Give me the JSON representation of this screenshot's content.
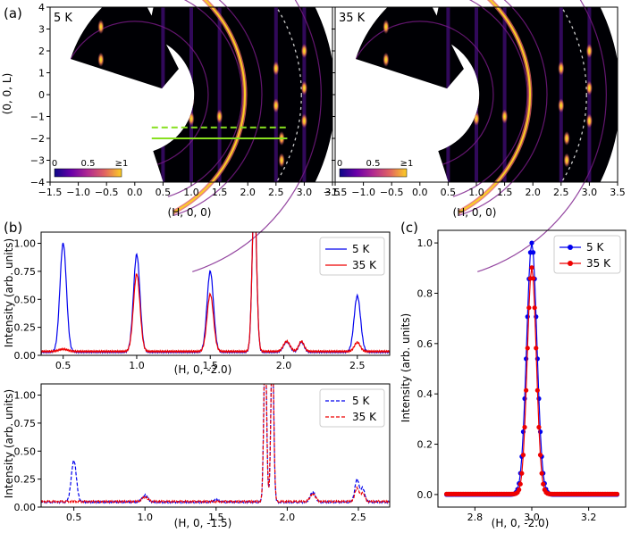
{
  "colors": {
    "blue": "#0000ee",
    "red": "#ee0000",
    "green": "#88e020",
    "dark": "#000004"
  },
  "chart_data": [
    {
      "panel": "(a)",
      "type": "heatmap",
      "subplots": [
        {
          "label": "5 K",
          "show_cuts": true
        },
        {
          "label": "35 K",
          "show_cuts": false
        }
      ],
      "xlabel": "(H, 0, 0)",
      "ylabel": "(0, 0, L)",
      "xlim": [
        -1.5,
        3.5
      ],
      "ylim": [
        -4,
        4
      ],
      "xticks": [
        "−1.5",
        "−1.0",
        "−0.5",
        "0.0",
        "0.5",
        "1.0",
        "1.5",
        "2.0",
        "2.5",
        "3.0",
        "3.5"
      ],
      "yticks": [
        "4",
        "3",
        "2",
        "1",
        "0",
        "−1",
        "−2",
        "−3",
        "−4"
      ],
      "colorbar": {
        "ticks": [
          "0",
          "0.5",
          "≥1"
        ],
        "colormap": "plasma"
      },
      "cut_lines": [
        {
          "L": -1.5,
          "style": "dashed",
          "H_range": [
            0.3,
            2.7
          ]
        },
        {
          "L": -2.0,
          "style": "solid",
          "H_range": [
            0.3,
            2.7
          ]
        }
      ]
    },
    {
      "panel": "(b)",
      "type": "line",
      "xlabel": "(H, 0, -2.0)",
      "ylabel": "Intensity (arb. units)",
      "xlim": [
        0.35,
        2.72
      ],
      "ylim": [
        0,
        1.1
      ],
      "xticks": [
        "0.5",
        "1.0",
        "1.5",
        "2.0",
        "2.5"
      ],
      "yticks": [
        "0.00",
        "0.25",
        "0.50",
        "0.75",
        "1.00"
      ],
      "line_style": "solid",
      "legend": "top-right",
      "series": [
        {
          "name": "5 K",
          "color": "blue",
          "baseline": 0.03,
          "peaks": [
            [
              0.5,
              0.97,
              0.022
            ],
            [
              1.0,
              0.87,
              0.022
            ],
            [
              1.5,
              0.72,
              0.022
            ],
            [
              1.8,
              1.4,
              0.015
            ],
            [
              2.02,
              0.09,
              0.022
            ],
            [
              2.12,
              0.09,
              0.018
            ],
            [
              2.5,
              0.5,
              0.022
            ]
          ]
        },
        {
          "name": "35 K",
          "color": "red",
          "baseline": 0.035,
          "peaks": [
            [
              0.5,
              0.02,
              0.03
            ],
            [
              1.0,
              0.69,
              0.022
            ],
            [
              1.5,
              0.51,
              0.022
            ],
            [
              1.8,
              1.4,
              0.015
            ],
            [
              2.02,
              0.09,
              0.022
            ],
            [
              2.12,
              0.09,
              0.018
            ],
            [
              2.5,
              0.08,
              0.02
            ]
          ]
        }
      ]
    },
    {
      "panel": "(b)",
      "type": "line",
      "xlabel": "(H, 0, -1.5)",
      "ylabel": "Intensity (arb. units)",
      "xlim": [
        0.27,
        2.72
      ],
      "ylim": [
        0,
        1.1
      ],
      "xticks": [
        "0.5",
        "1.0",
        "1.5",
        "2.0",
        "2.5"
      ],
      "yticks": [
        "0.00",
        "0.25",
        "0.50",
        "0.75",
        "1.00"
      ],
      "line_style": "dashed",
      "legend": "top-right",
      "series": [
        {
          "name": "5 K",
          "color": "blue",
          "baseline": 0.045,
          "peaks": [
            [
              0.5,
              0.37,
              0.018
            ],
            [
              1.0,
              0.06,
              0.02
            ],
            [
              1.5,
              0.02,
              0.02
            ],
            [
              1.845,
              1.4,
              0.01
            ],
            [
              1.895,
              1.4,
              0.01
            ],
            [
              2.18,
              0.09,
              0.018
            ],
            [
              2.49,
              0.2,
              0.015
            ],
            [
              2.53,
              0.12,
              0.015
            ]
          ]
        },
        {
          "name": "35 K",
          "color": "red",
          "baseline": 0.05,
          "peaks": [
            [
              1.0,
              0.04,
              0.02
            ],
            [
              1.845,
              1.4,
              0.01
            ],
            [
              1.895,
              1.4,
              0.01
            ],
            [
              2.18,
              0.07,
              0.018
            ],
            [
              2.49,
              0.12,
              0.015
            ],
            [
              2.53,
              0.07,
              0.015
            ]
          ]
        }
      ]
    },
    {
      "panel": "(c)",
      "type": "line",
      "xlabel": "(H, 0, -2.0)",
      "ylabel": "Intensity (arb. units)",
      "xlim": [
        2.67,
        3.33
      ],
      "ylim": [
        -0.05,
        1.05
      ],
      "xticks": [
        "2.8",
        "3.0",
        "3.2"
      ],
      "xtick_values": [
        2.8,
        3.0,
        3.2
      ],
      "yticks": [
        "0.0",
        "0.2",
        "0.4",
        "0.6",
        "0.8",
        "1.0"
      ],
      "ytick_values": [
        0,
        0.2,
        0.4,
        0.6,
        0.8,
        1.0
      ],
      "markers": true,
      "legend": "top-right",
      "x_range": [
        2.7,
        3.3
      ],
      "series": [
        {
          "name": "5 K",
          "color": "blue",
          "center": 3.0,
          "amplitude": 1.0,
          "sigma": 0.018
        },
        {
          "name": "35 K",
          "color": "red",
          "center": 3.0,
          "amplitude": 0.9,
          "sigma": 0.016
        }
      ]
    }
  ]
}
